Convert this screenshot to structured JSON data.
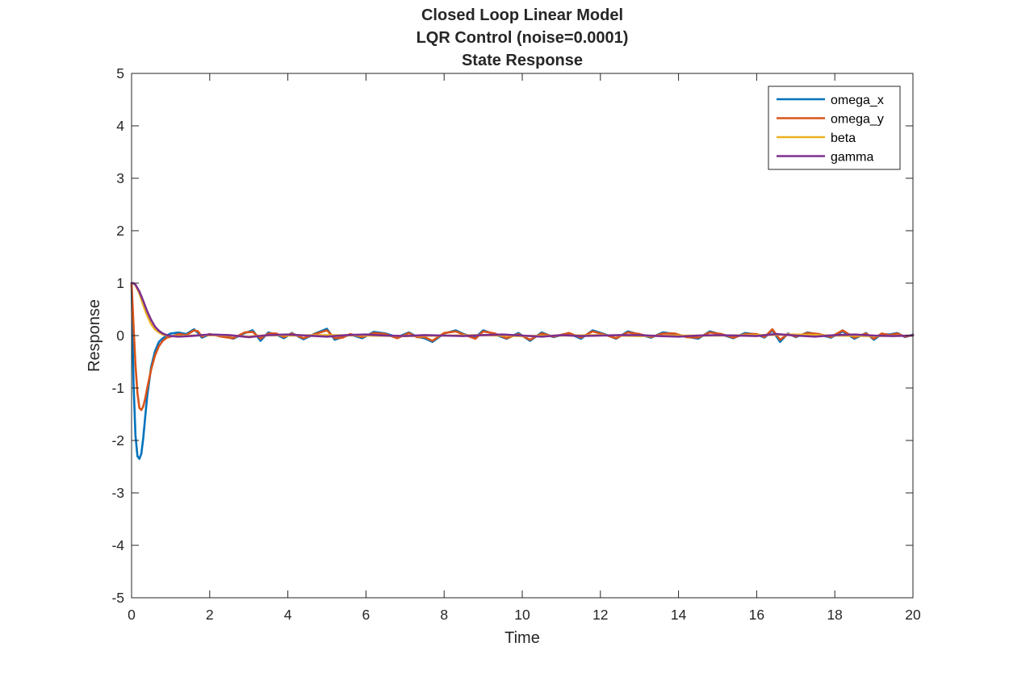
{
  "chart_data": {
    "type": "line",
    "title": [
      "Closed Loop Linear Model",
      "LQR Control (noise=0.0001)",
      "State Response"
    ],
    "xlabel": "Time",
    "ylabel": "Response",
    "xlim": [
      0,
      20
    ],
    "ylim": [
      -5,
      5
    ],
    "xticks": [
      0,
      2,
      4,
      6,
      8,
      10,
      12,
      14,
      16,
      18,
      20
    ],
    "yticks": [
      -5,
      -4,
      -3,
      -2,
      -1,
      0,
      1,
      2,
      3,
      4,
      5
    ],
    "grid": false,
    "legend_position": "top-right",
    "series": [
      {
        "name": "omega_x",
        "color": "#0072BD",
        "x": [
          0,
          0.05,
          0.1,
          0.15,
          0.2,
          0.25,
          0.3,
          0.35,
          0.4,
          0.5,
          0.6,
          0.7,
          0.8,
          0.9,
          1.0,
          1.1,
          1.2,
          1.4,
          1.6,
          1.7,
          1.8,
          2.0,
          2.3,
          2.6,
          2.9,
          3.1,
          3.3,
          3.5,
          3.7,
          3.9,
          4.1,
          4.4,
          4.7,
          5.0,
          5.2,
          5.4,
          5.6,
          5.9,
          6.2,
          6.5,
          6.8,
          7.1,
          7.3,
          7.5,
          7.7,
          8.0,
          8.3,
          8.5,
          8.8,
          9.0,
          9.3,
          9.6,
          9.9,
          10.2,
          10.5,
          10.8,
          11.2,
          11.5,
          11.8,
          12.1,
          12.4,
          12.7,
          13.0,
          13.3,
          13.6,
          13.9,
          14.2,
          14.5,
          14.8,
          15.1,
          15.4,
          15.7,
          16.0,
          16.2,
          16.4,
          16.6,
          16.8,
          17.0,
          17.3,
          17.6,
          17.9,
          18.2,
          18.5,
          18.8,
          19.0,
          19.2,
          19.4,
          19.6,
          19.8,
          20.0
        ],
        "y": [
          1.0,
          -0.9,
          -1.9,
          -2.3,
          -2.35,
          -2.25,
          -1.95,
          -1.55,
          -1.15,
          -0.6,
          -0.3,
          -0.12,
          -0.05,
          0.0,
          0.04,
          0.05,
          0.06,
          0.03,
          0.12,
          0.05,
          -0.04,
          0.02,
          0.01,
          -0.06,
          0.05,
          0.1,
          -0.1,
          0.06,
          0.02,
          -0.05,
          0.05,
          -0.07,
          0.04,
          0.13,
          -0.08,
          -0.03,
          0.02,
          -0.05,
          0.07,
          0.04,
          -0.03,
          0.06,
          -0.02,
          -0.05,
          -0.12,
          0.04,
          0.1,
          0.03,
          -0.04,
          0.1,
          0.02,
          -0.06,
          0.05,
          -0.1,
          0.06,
          -0.03,
          0.04,
          -0.06,
          0.1,
          0.03,
          -0.06,
          0.08,
          0.02,
          -0.04,
          0.06,
          0.03,
          -0.02,
          -0.06,
          0.08,
          0.02,
          -0.05,
          0.05,
          0.02,
          -0.04,
          0.1,
          -0.12,
          0.04,
          -0.03,
          0.06,
          0.02,
          -0.04,
          0.08,
          -0.06,
          0.05,
          -0.08,
          0.03,
          0.02,
          0.05,
          -0.03,
          0.02
        ]
      },
      {
        "name": "omega_y",
        "color": "#D95319",
        "x": [
          0,
          0.05,
          0.1,
          0.15,
          0.2,
          0.25,
          0.3,
          0.35,
          0.4,
          0.5,
          0.6,
          0.7,
          0.8,
          0.9,
          1.0,
          1.1,
          1.2,
          1.4,
          1.6,
          1.7,
          1.8,
          2.0,
          2.3,
          2.6,
          2.9,
          3.1,
          3.3,
          3.5,
          3.7,
          3.9,
          4.1,
          4.4,
          4.7,
          5.0,
          5.2,
          5.4,
          5.6,
          5.9,
          6.2,
          6.5,
          6.8,
          7.1,
          7.3,
          7.5,
          7.7,
          8.0,
          8.3,
          8.5,
          8.8,
          9.0,
          9.3,
          9.6,
          9.9,
          10.2,
          10.5,
          10.8,
          11.2,
          11.5,
          11.8,
          12.1,
          12.4,
          12.7,
          13.0,
          13.3,
          13.6,
          13.9,
          14.2,
          14.5,
          14.8,
          15.1,
          15.4,
          15.7,
          16.0,
          16.2,
          16.4,
          16.6,
          16.8,
          17.0,
          17.3,
          17.6,
          17.9,
          18.2,
          18.5,
          18.8,
          19.0,
          19.2,
          19.4,
          19.6,
          19.8,
          20.0
        ],
        "y": [
          1.0,
          0.2,
          -0.55,
          -1.1,
          -1.38,
          -1.42,
          -1.35,
          -1.2,
          -1.0,
          -0.65,
          -0.38,
          -0.2,
          -0.1,
          -0.04,
          -0.02,
          0.0,
          0.03,
          0.01,
          0.1,
          0.08,
          -0.02,
          0.03,
          -0.02,
          -0.05,
          0.06,
          0.07,
          -0.06,
          0.04,
          0.04,
          -0.03,
          0.04,
          -0.05,
          0.03,
          0.1,
          -0.05,
          -0.04,
          0.03,
          -0.03,
          0.05,
          0.03,
          -0.05,
          0.05,
          -0.03,
          -0.03,
          -0.1,
          0.05,
          0.08,
          0.02,
          -0.06,
          0.08,
          0.04,
          -0.05,
          0.03,
          -0.08,
          0.04,
          -0.02,
          0.05,
          -0.04,
          0.08,
          0.02,
          -0.05,
          0.06,
          0.03,
          -0.03,
          0.04,
          0.04,
          -0.03,
          -0.04,
          0.06,
          0.03,
          -0.04,
          0.03,
          0.03,
          -0.03,
          0.12,
          -0.08,
          0.03,
          -0.02,
          0.05,
          0.03,
          -0.03,
          0.1,
          -0.04,
          0.04,
          -0.06,
          0.04,
          0.01,
          0.04,
          -0.02,
          0.01
        ]
      },
      {
        "name": "beta",
        "color": "#EDB120",
        "x": [
          0,
          0.05,
          0.1,
          0.2,
          0.3,
          0.4,
          0.5,
          0.6,
          0.7,
          0.8,
          0.9,
          1.0,
          1.2,
          1.5,
          2.0,
          2.5,
          3.0,
          3.5,
          4.0,
          5.0,
          6.0,
          7.0,
          8.0,
          9.0,
          10.0,
          11.0,
          12.0,
          13.0,
          14.0,
          15.0,
          16.0,
          17.0,
          18.0,
          19.0,
          20.0
        ],
        "y": [
          1.0,
          1.0,
          0.96,
          0.8,
          0.58,
          0.38,
          0.22,
          0.12,
          0.06,
          0.02,
          0.0,
          -0.01,
          -0.01,
          0.0,
          0.01,
          0.0,
          -0.02,
          0.01,
          0.0,
          0.01,
          0.0,
          -0.01,
          0.0,
          0.01,
          -0.01,
          0.0,
          0.01,
          -0.01,
          0.0,
          0.0,
          0.01,
          0.02,
          0.0,
          -0.01,
          0.0
        ]
      },
      {
        "name": "gamma",
        "color": "#7E2F8E",
        "x": [
          0,
          0.05,
          0.1,
          0.2,
          0.3,
          0.4,
          0.5,
          0.6,
          0.7,
          0.8,
          0.9,
          1.0,
          1.2,
          1.5,
          2.0,
          2.5,
          3.0,
          3.5,
          4.0,
          4.5,
          5.0,
          5.5,
          6.0,
          6.5,
          7.0,
          7.5,
          8.0,
          8.5,
          9.0,
          9.5,
          10.0,
          10.5,
          11.0,
          11.5,
          12.0,
          12.5,
          13.0,
          13.5,
          14.0,
          14.5,
          15.0,
          15.5,
          16.0,
          16.5,
          17.0,
          17.5,
          18.0,
          18.5,
          19.0,
          19.5,
          20.0
        ],
        "y": [
          1.0,
          1.0,
          0.97,
          0.84,
          0.66,
          0.46,
          0.3,
          0.17,
          0.09,
          0.04,
          0.01,
          -0.01,
          -0.02,
          -0.01,
          0.02,
          0.01,
          -0.03,
          0.01,
          0.02,
          0.0,
          -0.02,
          0.01,
          0.02,
          0.0,
          -0.01,
          0.01,
          0.0,
          -0.01,
          0.01,
          0.02,
          0.0,
          -0.02,
          0.01,
          -0.01,
          0.0,
          0.01,
          0.01,
          -0.01,
          -0.02,
          0.0,
          0.01,
          0.0,
          -0.01,
          0.03,
          0.0,
          -0.02,
          0.01,
          0.02,
          0.0,
          -0.01,
          0.0
        ]
      }
    ]
  }
}
